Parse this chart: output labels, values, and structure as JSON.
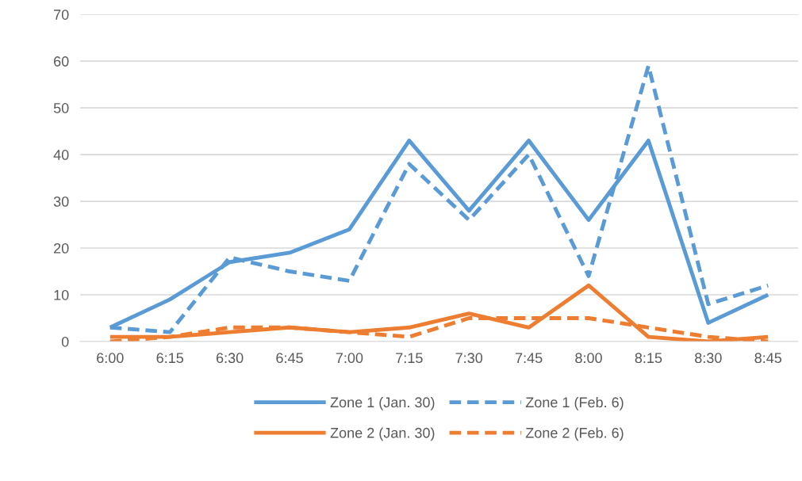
{
  "chart_data": {
    "type": "line",
    "categories": [
      "6:00",
      "6:15",
      "6:30",
      "6:45",
      "7:00",
      "7:15",
      "7:30",
      "7:45",
      "8:00",
      "8:15",
      "8:30",
      "8:45"
    ],
    "series": [
      {
        "name": "Zone 1 (Jan. 30)",
        "color": "#5b9bd5",
        "line_style": "solid",
        "values": [
          3,
          9,
          17,
          19,
          24,
          43,
          28,
          43,
          26,
          43,
          4,
          10
        ]
      },
      {
        "name": "Zone 2 (Jan. 30)",
        "color": "#ed7d31",
        "line_style": "solid",
        "values": [
          1,
          1,
          2,
          3,
          2,
          3,
          6,
          3,
          12,
          1,
          0,
          1
        ]
      },
      {
        "name": "Zone 1 (Feb. 6)",
        "color": "#5b9bd5",
        "line_style": "dashed",
        "values": [
          3,
          2,
          18,
          15,
          13,
          38,
          26,
          40,
          14,
          59,
          8,
          12
        ]
      },
      {
        "name": "Zone 2 (Feb. 6)",
        "color": "#ed7d31",
        "line_style": "dashed",
        "values": [
          0,
          1,
          3,
          3,
          2,
          1,
          5,
          5,
          5,
          3,
          1,
          0
        ]
      }
    ],
    "ylim": [
      0,
      70
    ],
    "yticks": [
      0,
      10,
      20,
      30,
      40,
      50,
      60,
      70
    ],
    "grid": "y",
    "legend": "bottom",
    "marker": "none"
  }
}
